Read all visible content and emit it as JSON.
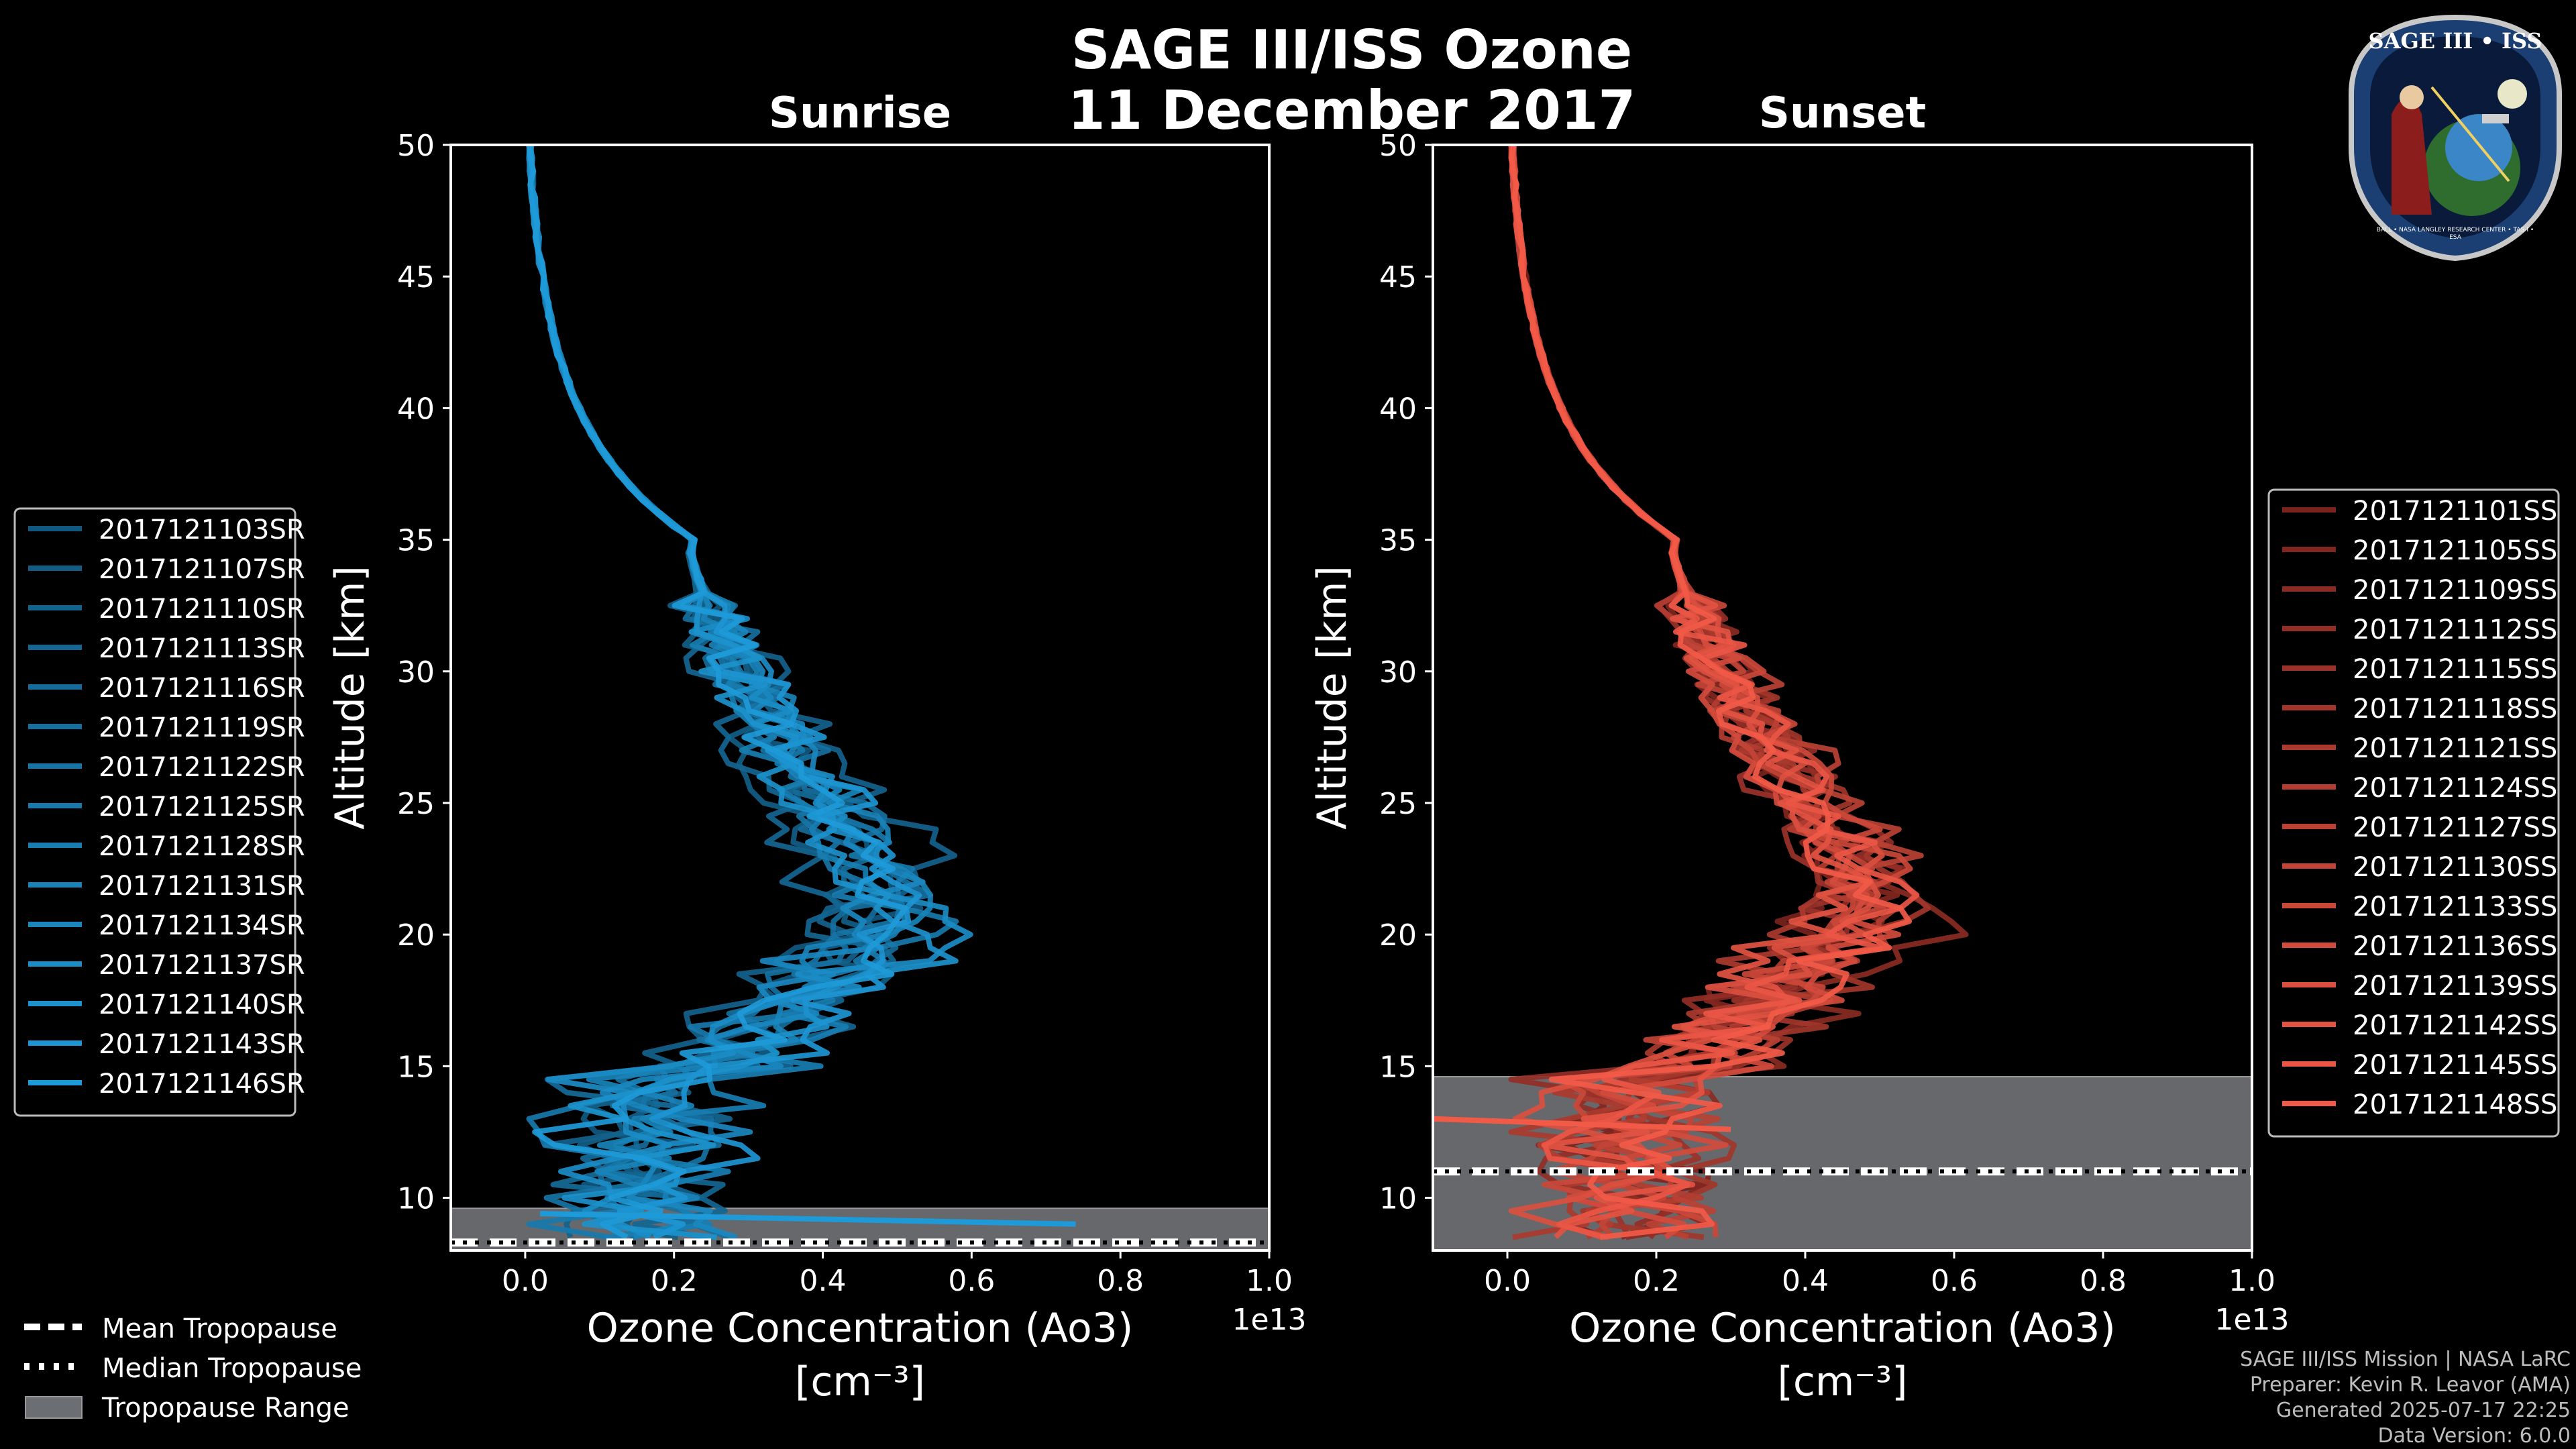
{
  "figure": {
    "title_line1": "SAGE III/ISS Ozone",
    "title_line2": "11 December 2017",
    "credits": [
      "SAGE III/ISS Mission | NASA LaRC",
      "Preparer: Kevin R. Leavor (AMA)",
      "Generated 2025-07-17 22:25",
      "Data Version: 6.0.0"
    ],
    "logo_text": "SAGE III • ISS",
    "logo_ring_text": "BALL • NASA LANGLEY RESEARCH CENTER • TAS-I • ESA"
  },
  "chart_data": [
    {
      "type": "line",
      "title": "Sunrise",
      "xlabel": "Ozone Concentration (Ao3)",
      "xunit": "[cm⁻³]",
      "ylabel": "Altitude [km]",
      "xlim": [
        -0.1,
        1.0
      ],
      "ylim": [
        8,
        50
      ],
      "xticks": [
        0.0,
        0.2,
        0.4,
        0.6,
        0.8,
        1.0
      ],
      "xtick_labels": [
        "0.0",
        "0.2",
        "0.4",
        "0.6",
        "0.8",
        "1.0"
      ],
      "yticks": [
        10,
        15,
        20,
        25,
        30,
        35,
        40,
        45,
        50
      ],
      "offset_text": "1e13",
      "tropopause": {
        "mean": 8.3,
        "median": 8.3,
        "range": [
          8.0,
          9.6
        ]
      },
      "colors": {
        "dark": "#0a3550",
        "light": "#1e9ad8"
      },
      "series": [
        {
          "name": "2017121103SR",
          "shape": [
            0.5,
            21,
            0.13,
            1
          ]
        },
        {
          "name": "2017121107SR",
          "shape": [
            0.48,
            19,
            0.16,
            2
          ]
        },
        {
          "name": "2017121110SR",
          "shape": [
            0.55,
            23,
            0.12,
            3
          ]
        },
        {
          "name": "2017121113SR",
          "shape": [
            0.46,
            18,
            0.2,
            4
          ]
        },
        {
          "name": "2017121116SR",
          "shape": [
            0.51,
            20,
            0.14,
            5
          ]
        },
        {
          "name": "2017121119SR",
          "shape": [
            0.53,
            22,
            0.18,
            6
          ]
        },
        {
          "name": "2017121122SR",
          "shape": [
            0.49,
            21,
            0.15,
            7
          ]
        },
        {
          "name": "2017121125SR",
          "shape": [
            0.56,
            20,
            0.11,
            8
          ]
        },
        {
          "name": "2017121128SR",
          "shape": [
            0.52,
            19,
            0.22,
            9
          ]
        },
        {
          "name": "2017121131SR",
          "shape": [
            0.54,
            21,
            0.17,
            10
          ]
        },
        {
          "name": "2017121134SR",
          "shape": [
            0.5,
            22,
            0.19,
            11
          ]
        },
        {
          "name": "2017121137SR",
          "shape": [
            0.57,
            20,
            0.13,
            12
          ]
        },
        {
          "name": "2017121140SR",
          "shape": [
            0.53,
            19,
            0.16,
            13
          ]
        },
        {
          "name": "2017121143SR",
          "shape": [
            0.55,
            21,
            0.21,
            14
          ]
        },
        {
          "name": "2017121146SR",
          "shape": [
            0.52,
            20,
            0.14,
            15
          ]
        }
      ]
    },
    {
      "type": "line",
      "title": "Sunset",
      "xlabel": "Ozone Concentration (Ao3)",
      "xunit": "[cm⁻³]",
      "ylabel": "Altitude [km]",
      "xlim": [
        -0.1,
        1.0
      ],
      "ylim": [
        8,
        50
      ],
      "xticks": [
        0.0,
        0.2,
        0.4,
        0.6,
        0.8,
        1.0
      ],
      "xtick_labels": [
        "0.0",
        "0.2",
        "0.4",
        "0.6",
        "0.8",
        "1.0"
      ],
      "yticks": [
        10,
        15,
        20,
        25,
        30,
        35,
        40,
        45,
        50
      ],
      "offset_text": "1e13",
      "tropopause": {
        "mean": 11.0,
        "median": 11.0,
        "range": [
          8.0,
          14.6
        ]
      },
      "colors": {
        "dark": "#3a0606",
        "light": "#f25a48"
      },
      "series": [
        {
          "name": "2017121101SS",
          "shape": [
            0.46,
            22,
            0.18,
            21
          ]
        },
        {
          "name": "2017121105SS",
          "shape": [
            0.5,
            21,
            0.14,
            22
          ]
        },
        {
          "name": "2017121109SS",
          "shape": [
            0.58,
            20,
            0.2,
            23
          ]
        },
        {
          "name": "2017121112SS",
          "shape": [
            0.52,
            22,
            0.12,
            24
          ]
        },
        {
          "name": "2017121115SS",
          "shape": [
            0.48,
            19,
            0.16,
            25
          ]
        },
        {
          "name": "2017121118SS",
          "shape": [
            0.55,
            21,
            0.22,
            26
          ]
        },
        {
          "name": "2017121121SS",
          "shape": [
            0.47,
            22,
            0.1,
            27
          ]
        },
        {
          "name": "2017121124SS",
          "shape": [
            0.51,
            20,
            0.15,
            28
          ]
        },
        {
          "name": "2017121127SS",
          "shape": [
            0.54,
            23,
            0.19,
            29
          ]
        },
        {
          "name": "2017121130SS",
          "shape": [
            0.49,
            21,
            0.13,
            30
          ]
        },
        {
          "name": "2017121133SS",
          "shape": [
            0.53,
            22,
            0.17,
            31
          ]
        },
        {
          "name": "2017121136SS",
          "shape": [
            0.5,
            20,
            0.21,
            32
          ]
        },
        {
          "name": "2017121139SS",
          "shape": [
            0.52,
            21,
            0.11,
            33
          ]
        },
        {
          "name": "2017121142SS",
          "shape": [
            0.48,
            22,
            0.16,
            34
          ]
        },
        {
          "name": "2017121145SS",
          "shape": [
            0.54,
            21,
            0.14,
            35
          ]
        },
        {
          "name": "2017121148SS",
          "shape": [
            0.51,
            20,
            0.18,
            36
          ]
        }
      ]
    }
  ],
  "tropopause_legend": {
    "mean_label": "Mean Tropopause",
    "median_label": "Median Tropopause",
    "range_label": "Tropopause Range",
    "range_color": "#6b6e72"
  }
}
